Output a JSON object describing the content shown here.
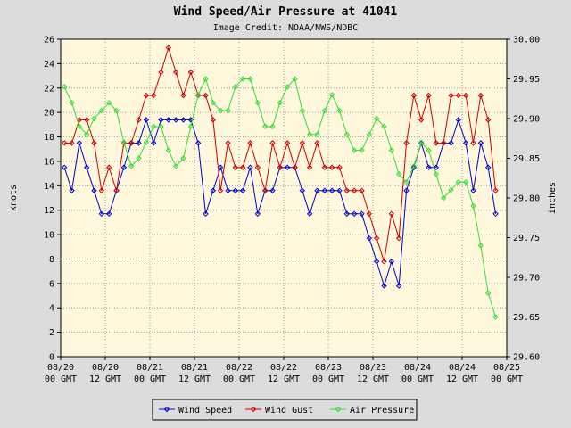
{
  "chart_data": {
    "type": "line",
    "title": "Wind Speed/Air Pressure at 41041",
    "subtitle": "Image Credit: NOAA/NWS/NDBC",
    "ylabel": "knots",
    "y2label": "inches",
    "x": [
      1,
      3,
      5,
      7,
      9,
      11,
      13,
      15,
      17,
      19,
      21,
      23,
      25,
      27,
      29,
      31,
      33,
      35,
      37,
      39,
      41,
      43,
      45,
      47,
      49,
      51,
      53,
      55,
      57,
      59,
      61,
      63,
      65,
      67,
      69,
      71,
      73,
      75,
      77,
      79,
      81,
      83,
      85,
      87,
      89,
      91,
      93,
      95,
      97,
      99,
      101,
      103,
      105,
      107,
      109,
      111,
      113,
      115,
      117
    ],
    "xlim": [
      0,
      120
    ],
    "xticks": [
      {
        "value": 0,
        "label": [
          "08/20",
          "00 GMT"
        ]
      },
      {
        "value": 12,
        "label": [
          "08/20",
          "12 GMT"
        ]
      },
      {
        "value": 24,
        "label": [
          "08/21",
          "00 GMT"
        ]
      },
      {
        "value": 36,
        "label": [
          "08/21",
          "12 GMT"
        ]
      },
      {
        "value": 48,
        "label": [
          "08/22",
          "00 GMT"
        ]
      },
      {
        "value": 60,
        "label": [
          "08/22",
          "12 GMT"
        ]
      },
      {
        "value": 72,
        "label": [
          "08/23",
          "00 GMT"
        ]
      },
      {
        "value": 84,
        "label": [
          "08/23",
          "12 GMT"
        ]
      },
      {
        "value": 96,
        "label": [
          "08/24",
          "00 GMT"
        ]
      },
      {
        "value": 108,
        "label": [
          "08/24",
          "12 GMT"
        ]
      },
      {
        "value": 120,
        "label": [
          "08/25",
          "00 GMT"
        ]
      }
    ],
    "ylim": [
      0,
      26
    ],
    "yticks": [
      0,
      2,
      4,
      6,
      8,
      10,
      12,
      14,
      16,
      18,
      20,
      22,
      24,
      26
    ],
    "y2lim": [
      29.6,
      30.0
    ],
    "y2ticks": [
      {
        "value": 29.6,
        "label": "29.60"
      },
      29.65,
      {
        "value": 29.7,
        "label": "29.70"
      },
      29.75,
      {
        "value": 29.8,
        "label": "29.80"
      },
      29.85,
      {
        "value": 29.9,
        "label": "29.90"
      },
      29.95,
      {
        "value": 30.0,
        "label": "30.00"
      }
    ],
    "grid": true,
    "legend": "bottom",
    "series": [
      {
        "name": "Wind Speed",
        "color": "#0000cc",
        "axis": "y",
        "values": [
          15.5,
          13.6,
          17.5,
          15.5,
          13.6,
          11.7,
          11.7,
          13.6,
          15.5,
          17.5,
          17.5,
          19.4,
          17.5,
          19.4,
          19.4,
          19.4,
          19.4,
          19.4,
          17.5,
          11.7,
          13.6,
          15.5,
          13.6,
          13.6,
          13.6,
          15.5,
          11.7,
          13.6,
          13.6,
          15.5,
          15.5,
          15.5,
          13.6,
          11.7,
          13.6,
          13.6,
          13.6,
          13.6,
          11.7,
          11.7,
          11.7,
          9.7,
          7.8,
          5.8,
          7.8,
          5.8,
          13.6,
          15.5,
          17.5,
          15.5,
          15.5,
          17.5,
          17.5,
          19.4,
          17.5,
          13.6,
          17.5,
          15.5,
          11.7
        ]
      },
      {
        "name": "Wind Gust",
        "color": "#cc0000",
        "axis": "y",
        "values": [
          17.5,
          17.5,
          19.4,
          19.4,
          17.5,
          13.6,
          15.5,
          13.6,
          17.5,
          17.5,
          19.4,
          21.4,
          21.4,
          23.3,
          25.3,
          23.3,
          21.4,
          23.3,
          21.4,
          21.4,
          19.4,
          13.6,
          17.5,
          15.5,
          15.5,
          17.5,
          15.5,
          13.6,
          17.5,
          15.5,
          17.5,
          15.5,
          17.5,
          15.5,
          17.5,
          15.5,
          15.5,
          15.5,
          13.6,
          13.6,
          13.6,
          11.7,
          9.7,
          7.8,
          11.7,
          9.7,
          17.5,
          21.4,
          19.4,
          21.4,
          17.5,
          17.5,
          21.4,
          21.4,
          21.4,
          17.5,
          21.4,
          19.4,
          13.6
        ]
      },
      {
        "name": "Air Pressure",
        "color": "#33dd33",
        "axis": "y2",
        "values": [
          29.94,
          29.92,
          29.89,
          29.88,
          29.9,
          29.91,
          29.92,
          29.91,
          29.87,
          29.84,
          29.85,
          29.87,
          29.89,
          29.89,
          29.86,
          29.84,
          29.85,
          29.89,
          29.93,
          29.95,
          29.92,
          29.91,
          29.91,
          29.94,
          29.95,
          29.95,
          29.92,
          29.89,
          29.89,
          29.92,
          29.94,
          29.95,
          29.91,
          29.88,
          29.88,
          29.91,
          29.93,
          29.91,
          29.88,
          29.86,
          29.86,
          29.88,
          29.9,
          29.89,
          29.86,
          29.83,
          29.82,
          29.84,
          29.87,
          29.86,
          29.83,
          29.8,
          29.81,
          29.82,
          29.82,
          29.79,
          29.74,
          29.68,
          29.65
        ]
      }
    ]
  }
}
